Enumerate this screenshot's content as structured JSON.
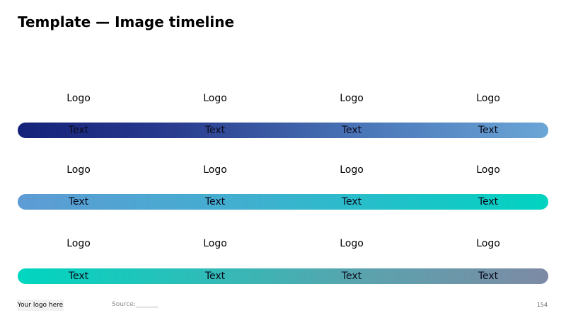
{
  "title": "Template — Image timeline",
  "timeline": {
    "rows": [
      {
        "logos": [
          "Logo",
          "Logo",
          "Logo",
          "Logo"
        ],
        "texts": [
          "Text",
          "Text",
          "Text",
          "Text"
        ]
      },
      {
        "logos": [
          "Logo",
          "Logo",
          "Logo",
          "Logo"
        ],
        "texts": [
          "Text",
          "Text",
          "Text",
          "Text"
        ]
      },
      {
        "logos": [
          "Logo",
          "Logo",
          "Logo",
          "Logo"
        ],
        "texts": [
          "Text",
          "Text",
          "Text",
          "Text"
        ]
      }
    ]
  },
  "footer": {
    "logo_label": "Your logo here",
    "source": "Source:_______",
    "page_number": "154"
  },
  "colors": {
    "bar1_start": "#15227a",
    "bar1_end": "#6aa6d6",
    "bar2_start": "#5e9bd4",
    "bar2_end": "#00d3c0",
    "bar3_start": "#00d6c0",
    "bar3_end": "#7d8aa5"
  }
}
